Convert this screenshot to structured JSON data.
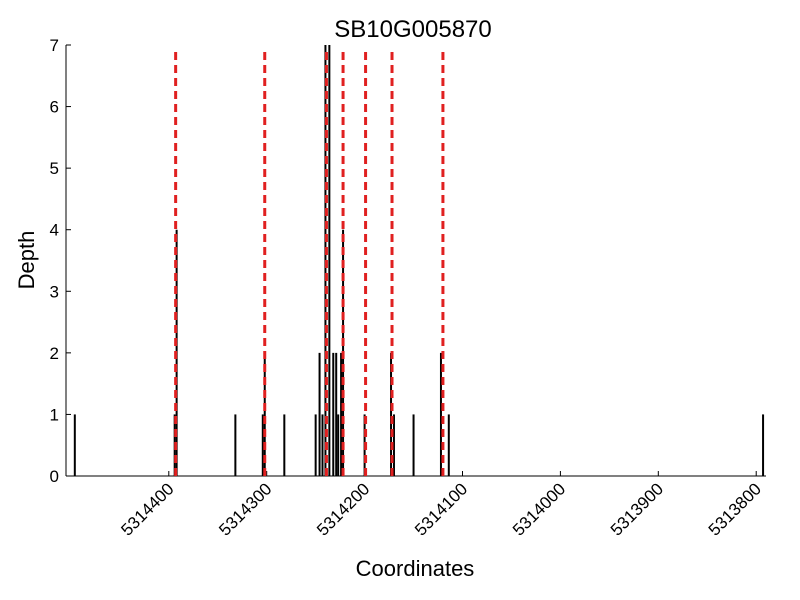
{
  "chart_data": {
    "type": "bar",
    "title": "SB10G005870",
    "xlabel": "Coordinates",
    "ylabel": "Depth",
    "xlim": [
      5314505,
      5313790
    ],
    "ylim": [
      0,
      7
    ],
    "x_ticks": [
      5314400,
      5314300,
      5314200,
      5314100,
      5314000,
      5313900,
      5313800
    ],
    "y_ticks": [
      0,
      1,
      2,
      3,
      4,
      5,
      6,
      7
    ],
    "grid": false,
    "series": [
      {
        "kind": "depth_bars",
        "color": "#000000",
        "points": [
          {
            "x": 5314496,
            "y": 1
          },
          {
            "x": 5314394,
            "y": 1
          },
          {
            "x": 5314392,
            "y": 4
          },
          {
            "x": 5314332,
            "y": 1
          },
          {
            "x": 5314304,
            "y": 1
          },
          {
            "x": 5314302,
            "y": 2
          },
          {
            "x": 5314282,
            "y": 1
          },
          {
            "x": 5314250,
            "y": 1
          },
          {
            "x": 5314246,
            "y": 2
          },
          {
            "x": 5314243,
            "y": 1
          },
          {
            "x": 5314240,
            "y": 7
          },
          {
            "x": 5314236,
            "y": 7
          },
          {
            "x": 5314232,
            "y": 2
          },
          {
            "x": 5314229,
            "y": 2
          },
          {
            "x": 5314227,
            "y": 1
          },
          {
            "x": 5314224,
            "y": 2
          },
          {
            "x": 5314222,
            "y": 4
          },
          {
            "x": 5314200,
            "y": 1
          },
          {
            "x": 5314173,
            "y": 2
          },
          {
            "x": 5314170,
            "y": 1
          },
          {
            "x": 5314150,
            "y": 1
          },
          {
            "x": 5314122,
            "y": 2
          },
          {
            "x": 5314114,
            "y": 1
          },
          {
            "x": 5313793,
            "y": 1
          }
        ]
      },
      {
        "kind": "vertical_dashed_lines",
        "color": "#e02020",
        "x": [
          5314393,
          5314302,
          5314239,
          5314222,
          5314199,
          5314172,
          5314120
        ]
      }
    ]
  }
}
